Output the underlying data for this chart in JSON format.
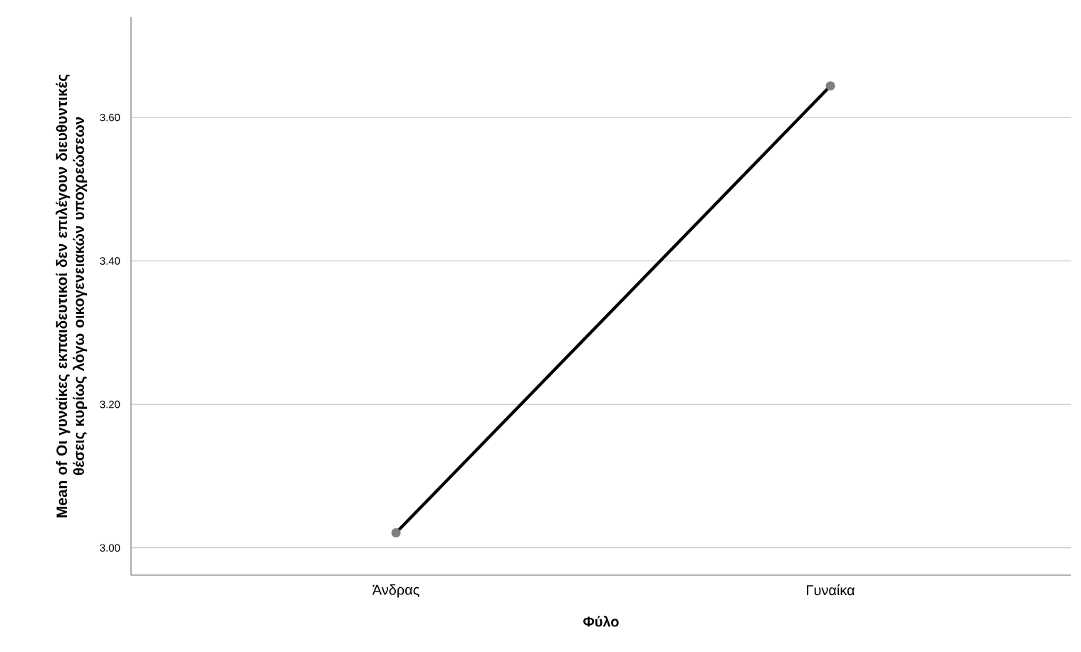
{
  "chart_data": {
    "type": "line",
    "xlabel": "Φύλο",
    "ylabel": "Mean of Οι γυναίκες εκπαιδευτικοί δεν επιλέγουν διευθυντικές θέσεις κυρίως λόγω οικογενειακών υποχρεώσεων",
    "categories": [
      "Άνδρας",
      "Γυναίκα"
    ],
    "series": [
      {
        "color": "#000000",
        "values": [
          3.021,
          3.644
        ]
      }
    ],
    "ylim": [
      2.962,
      3.74
    ],
    "yticks": [
      {
        "value": 3.0,
        "label": "3.00"
      },
      {
        "value": 3.2,
        "label": "3.20"
      },
      {
        "value": 3.4,
        "label": "3.40"
      },
      {
        "value": 3.6,
        "label": "3.60"
      }
    ],
    "grid": "y",
    "marker": "circle",
    "line_style": "solid"
  }
}
